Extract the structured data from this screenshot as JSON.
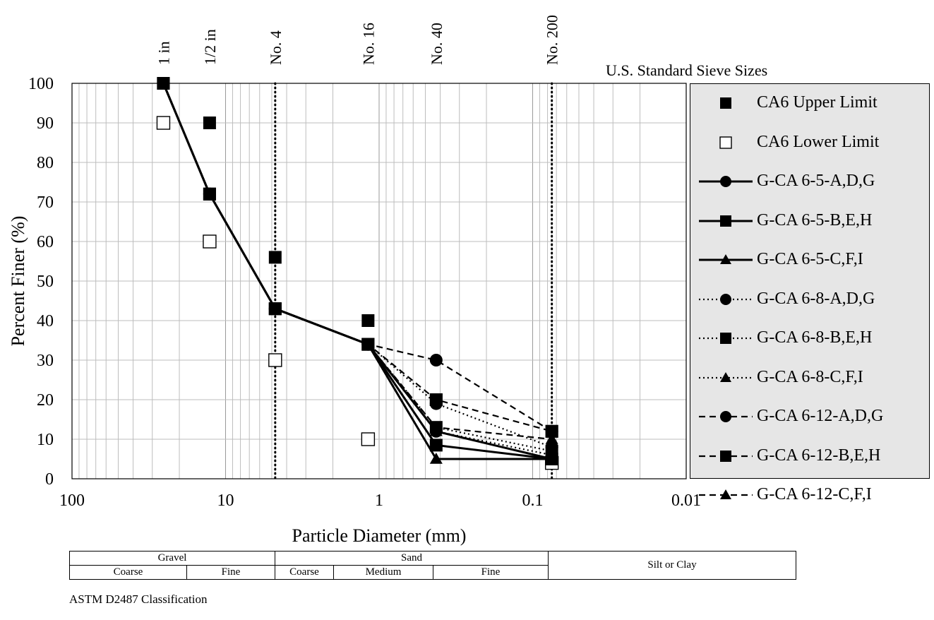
{
  "chart_data": {
    "type": "scatter",
    "title": "",
    "xlabel": "Particle Diameter (mm)",
    "ylabel": "Percent Finer (%)",
    "x_scale": "log",
    "x_reversed": true,
    "xlim": [
      100,
      0.01
    ],
    "ylim": [
      0,
      100
    ],
    "x_ticks": [
      {
        "value": 100,
        "label": "100"
      },
      {
        "value": 10,
        "label": "10"
      },
      {
        "value": 1,
        "label": "1"
      },
      {
        "value": 0.1,
        "label": "0.1"
      },
      {
        "value": 0.01,
        "label": "0.01"
      }
    ],
    "y_ticks": [
      0,
      10,
      20,
      30,
      40,
      50,
      60,
      70,
      80,
      90,
      100
    ],
    "grid": true,
    "sieves": [
      {
        "label": "1 in",
        "size": 25.4,
        "reference_line": false
      },
      {
        "label": "1/2 in",
        "size": 12.7,
        "reference_line": false
      },
      {
        "label": "No. 4",
        "size": 4.75,
        "reference_line": true
      },
      {
        "label": "No. 16",
        "size": 1.18,
        "reference_line": false
      },
      {
        "label": "No. 40",
        "size": 0.425,
        "reference_line": false
      },
      {
        "label": "No. 200",
        "size": 0.075,
        "reference_line": true
      }
    ],
    "sieve_axis_label": "U.S. Standard Sieve  Sizes",
    "legend_position": "right",
    "series": [
      {
        "name": "CA6 Upper Limit",
        "marker": "square-filled",
        "line": "none",
        "x": [
          25.4,
          12.7,
          4.75,
          1.18,
          0.425,
          0.075
        ],
        "y": [
          100,
          90,
          56,
          40,
          20,
          12
        ]
      },
      {
        "name": "CA6 Lower Limit",
        "marker": "square-open",
        "line": "none",
        "x": [
          25.4,
          12.7,
          4.75,
          1.18,
          0.075
        ],
        "y": [
          90,
          60,
          30,
          10,
          4
        ]
      },
      {
        "name": "G-CA 6-5-A,D,G",
        "marker": "circle",
        "line": "solid",
        "x": [
          25.4,
          12.7,
          4.75,
          1.18,
          0.425,
          0.075
        ],
        "y": [
          100,
          72,
          43,
          34,
          12,
          5
        ]
      },
      {
        "name": "G-CA 6-5-B,E,H",
        "marker": "square",
        "line": "solid",
        "x": [
          25.4,
          12.7,
          4.75,
          1.18,
          0.425,
          0.075
        ],
        "y": [
          100,
          72,
          43,
          34,
          8.5,
          5
        ]
      },
      {
        "name": "G-CA 6-5-C,F,I",
        "marker": "triangle",
        "line": "solid",
        "x": [
          25.4,
          12.7,
          4.75,
          1.18,
          0.425,
          0.075
        ],
        "y": [
          100,
          72,
          43,
          34,
          5,
          5
        ]
      },
      {
        "name": "G-CA 6-8-A,D,G",
        "marker": "circle",
        "line": "dotted",
        "x": [
          25.4,
          12.7,
          4.75,
          1.18,
          0.425,
          0.075
        ],
        "y": [
          100,
          72,
          43,
          34,
          19,
          8
        ]
      },
      {
        "name": "G-CA 6-8-B,E,H",
        "marker": "square",
        "line": "dotted",
        "x": [
          25.4,
          12.7,
          4.75,
          1.18,
          0.425,
          0.075
        ],
        "y": [
          100,
          72,
          43,
          34,
          13,
          7
        ]
      },
      {
        "name": "G-CA 6-8-C,F,I",
        "marker": "triangle",
        "line": "dotted",
        "x": [
          25.4,
          12.7,
          4.75,
          1.18,
          0.425,
          0.075
        ],
        "y": [
          100,
          72,
          43,
          34,
          12,
          6
        ]
      },
      {
        "name": "G-CA 6-12-A,D,G",
        "marker": "circle",
        "line": "dashed",
        "x": [
          25.4,
          12.7,
          4.75,
          1.18,
          0.425,
          0.075
        ],
        "y": [
          100,
          72,
          43,
          34,
          30,
          12
        ]
      },
      {
        "name": "G-CA 6-12-B,E,H",
        "marker": "square",
        "line": "dashed",
        "x": [
          25.4,
          12.7,
          4.75,
          1.18,
          0.425,
          0.075
        ],
        "y": [
          100,
          72,
          43,
          34,
          20,
          12
        ]
      },
      {
        "name": "G-CA 6-12-C,F,I",
        "marker": "triangle",
        "line": "dashed",
        "x": [
          25.4,
          12.7,
          4.75,
          1.18,
          0.425,
          0.075
        ],
        "y": [
          100,
          72,
          43,
          34,
          13,
          10
        ]
      }
    ]
  },
  "classification": {
    "gravel": "Gravel",
    "gravel_coarse": "Coarse",
    "gravel_fine": "Fine",
    "sand": "Sand",
    "sand_coarse": "Coarse",
    "sand_medium": "Medium",
    "sand_fine": "Fine",
    "silt_clay": "Silt or Clay",
    "caption": "ASTM D2487 Classification"
  }
}
